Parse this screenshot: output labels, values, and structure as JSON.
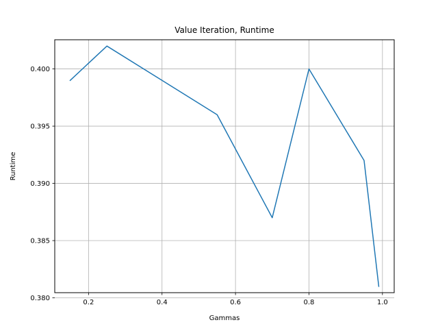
{
  "chart_data": {
    "type": "line",
    "title": "Value Iteration, Runtime",
    "xlabel": "Gammas",
    "ylabel": "Runtime",
    "x": [
      0.15,
      0.25,
      0.4,
      0.55,
      0.7,
      0.8,
      0.95,
      0.99
    ],
    "series": [
      {
        "values": [
          0.399,
          0.402,
          0.399,
          0.396,
          0.387,
          0.4,
          0.392,
          0.381
        ],
        "color": "#1f77b4"
      }
    ],
    "xlim": [
      0.108,
      1.032
    ],
    "ylim": [
      0.38045,
      0.40255
    ],
    "xticks": [
      0.2,
      0.4,
      0.6,
      0.8,
      1.0
    ],
    "xtick_labels": [
      "0.2",
      "0.4",
      "0.6",
      "0.8",
      "1.0"
    ],
    "yticks": [
      0.38,
      0.385,
      0.39,
      0.395,
      0.4
    ],
    "ytick_labels": [
      "0.380",
      "0.385",
      "0.390",
      "0.395",
      "0.400"
    ],
    "grid": true
  }
}
